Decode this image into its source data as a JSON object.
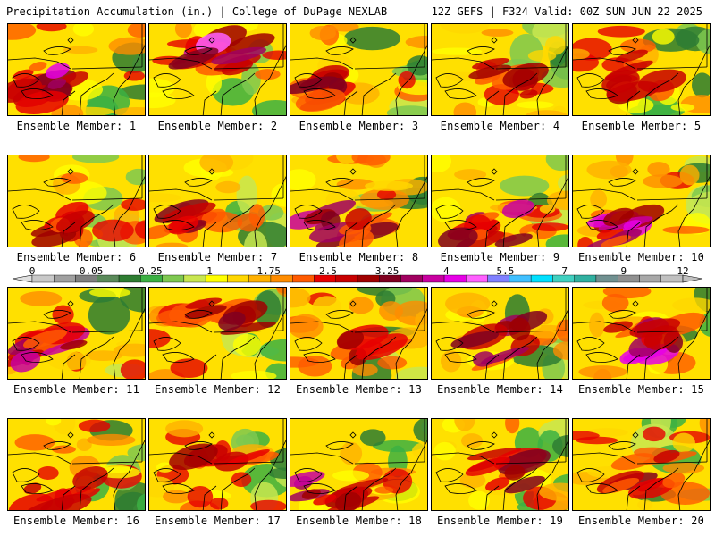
{
  "header": {
    "left": "Precipitation Accumulation (in.) | College of DuPage NEXLAB",
    "right": "12Z GEFS | F324 Valid: 00Z SUN JUN 22 2025"
  },
  "legend": {
    "tick_labels": [
      "0",
      "0.05",
      "0.25",
      "1",
      "1.75",
      "2.5",
      "3.25",
      "4",
      "5.5",
      "7",
      "9",
      "12"
    ],
    "bin_colors": [
      "#c8c8c8",
      "#a0a0a0",
      "#808080",
      "#5a8a5a",
      "#2e7d32",
      "#3cb043",
      "#7ec850",
      "#c8e650",
      "#ffff00",
      "#ffd700",
      "#ffb000",
      "#ff8c00",
      "#ff5a00",
      "#e60000",
      "#c80000",
      "#a00000",
      "#800020",
      "#a00060",
      "#c800a0",
      "#e600e6",
      "#ff60ff",
      "#8080ff",
      "#40c0ff",
      "#00e0ff",
      "#40d0c0",
      "#30b0a0",
      "#709090",
      "#909090",
      "#a8a8a8",
      "#c0c0c0"
    ]
  },
  "members": [
    {
      "label": "Ensemble Member: 1",
      "wet": 0.75,
      "wet_area": "west"
    },
    {
      "label": "Ensemble Member: 2",
      "wet": 0.85,
      "wet_area": "north"
    },
    {
      "label": "Ensemble Member: 3",
      "wet": 0.6,
      "wet_area": "west"
    },
    {
      "label": "Ensemble Member: 4",
      "wet": 0.45,
      "wet_area": "center"
    },
    {
      "label": "Ensemble Member: 5",
      "wet": 0.45,
      "wet_area": "center"
    },
    {
      "label": "Ensemble Member: 6",
      "wet": 0.45,
      "wet_area": "south"
    },
    {
      "label": "Ensemble Member: 7",
      "wet": 0.5,
      "wet_area": "west"
    },
    {
      "label": "Ensemble Member: 8",
      "wet": 0.85,
      "wet_area": "south"
    },
    {
      "label": "Ensemble Member: 9",
      "wet": 0.65,
      "wet_area": "south"
    },
    {
      "label": "Ensemble Member: 10",
      "wet": 0.8,
      "wet_area": "south"
    },
    {
      "label": "Ensemble Member: 11",
      "wet": 0.75,
      "wet_area": "west"
    },
    {
      "label": "Ensemble Member: 12",
      "wet": 0.5,
      "wet_area": "north"
    },
    {
      "label": "Ensemble Member: 13",
      "wet": 0.35,
      "wet_area": "center"
    },
    {
      "label": "Ensemble Member: 14",
      "wet": 0.6,
      "wet_area": "center"
    },
    {
      "label": "Ensemble Member: 15",
      "wet": 0.85,
      "wet_area": "center"
    },
    {
      "label": "Ensemble Member: 16",
      "wet": 0.4,
      "wet_area": "south"
    },
    {
      "label": "Ensemble Member: 17",
      "wet": 0.35,
      "wet_area": "center"
    },
    {
      "label": "Ensemble Member: 18",
      "wet": 0.65,
      "wet_area": "south"
    },
    {
      "label": "Ensemble Member: 19",
      "wet": 0.5,
      "wet_area": "center"
    },
    {
      "label": "Ensemble Member: 20",
      "wet": 0.45,
      "wet_area": "center"
    }
  ]
}
